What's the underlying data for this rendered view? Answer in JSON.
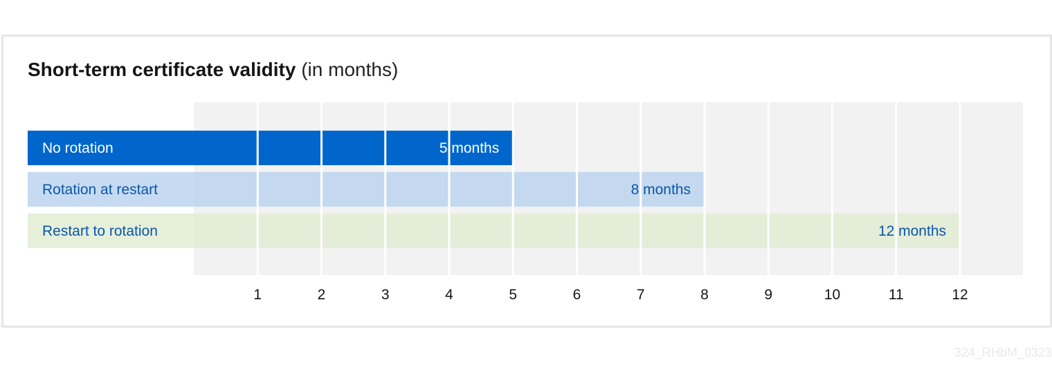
{
  "chart_data": {
    "type": "bar",
    "orientation": "horizontal",
    "title": "Short-term certificate validity",
    "subtitle": "(in months)",
    "categories": [
      "No rotation",
      "Rotation at restart",
      "Restart to rotation"
    ],
    "values": [
      5,
      8,
      12
    ],
    "value_labels": [
      "5 months",
      "8 months",
      "12 months"
    ],
    "colors": [
      "#0066cc",
      "#b9d3ee",
      "#e1ebd2"
    ],
    "label_colors": [
      "#ffffff",
      "#0b56a8",
      "#0b56a8"
    ],
    "xlim": [
      0,
      13
    ],
    "xticks": [
      "1",
      "2",
      "3",
      "4",
      "5",
      "6",
      "7",
      "8",
      "9",
      "10",
      "11",
      "12"
    ],
    "grid": true
  },
  "footer": {
    "figure_id": "324_RHbM_0323"
  }
}
